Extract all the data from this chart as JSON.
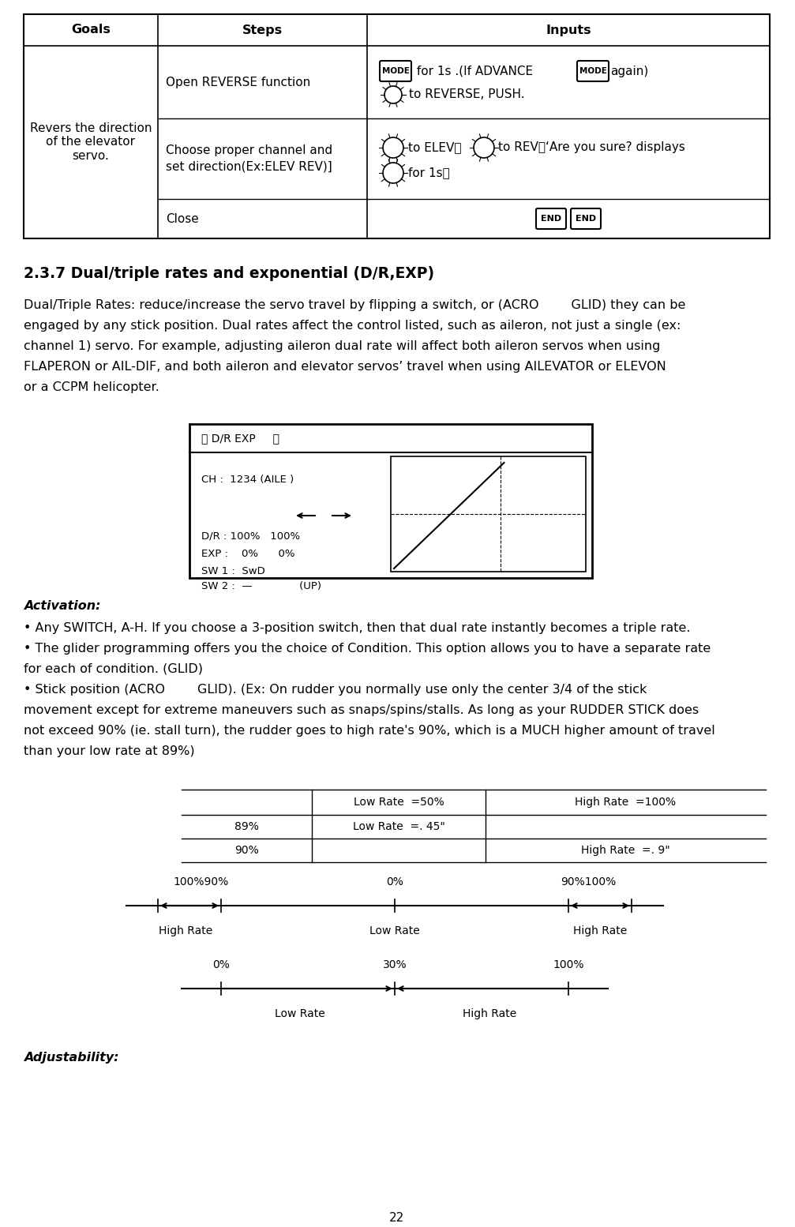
{
  "page_number": "22",
  "bg_color": "#ffffff",
  "table_headers": [
    "Goals",
    "Steps",
    "Inputs"
  ],
  "goal_text": "Revers the direction\nof the elevator\nservo.",
  "step1": "Open REVERSE function",
  "step2": "Choose proper channel and\nset direction(Ex:ELEV REV)]",
  "step3": "Close",
  "section_title": "2.3.7 Dual/triple rates and exponential (D/R,EXP)",
  "body_lines": [
    "Dual/Triple Rates: reduce/increase the servo travel by flipping a switch, or (ACRO        GLID) they can be",
    "engaged by any stick position. Dual rates affect the control listed, such as aileron, not just a single (ex:",
    "channel 1) servo. For example, adjusting aileron dual rate will affect both aileron servos when using",
    "FLAPERON or AIL-DIF, and both aileron and elevator servos’ travel when using AILEVATOR or ELEVON",
    "or a CCPM helicopter."
  ],
  "diag_header": "【 D/R EXP     】",
  "diag_ch": "CH :  1234 (AILE )",
  "diag_dr": "D/R : 100%   100%",
  "diag_exp": "EXP :    0%      0%",
  "diag_sw1": "SW 1 :  SwD",
  "diag_sw2": "SW 2 :  —              (UP)",
  "activation_title": "Activation:",
  "bullet1": "• Any SWITCH, A-H. If you choose a 3-position switch, then that dual rate instantly becomes a triple rate.",
  "bullet2": "• The glider programming offers you the choice of Condition. This option allows you to have a separate rate",
  "bullet2b": "for each of condition. (GLID)",
  "bullet3": "• Stick position (ACRO        GLID). (Ex: On rudder you normally use only the center 3/4 of the stick",
  "bullet3b": "movement except for extreme maneuvers such as snaps/spins/stalls. As long as your RUDDER STICK does",
  "bullet3c": "not exceed 90% (ie. stall turn), the rudder goes to high rate's 90%, which is a MUCH higher amount of travel",
  "bullet3d": "than your low rate at 89%)",
  "adjustability_title": "Adjustability:",
  "font_body": 11.5,
  "font_table": 11.0,
  "font_section": 13.5,
  "font_diag": 9.0
}
